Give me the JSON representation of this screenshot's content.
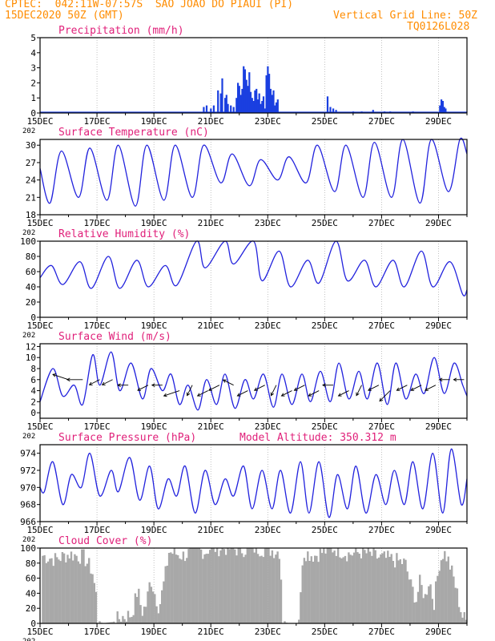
{
  "header": {
    "line1": "CPTEC:  042:11W-07:57S  SAO JOAO DO PIAUI (PI)",
    "line2": "15DEC2020 50Z (GMT)",
    "grid_note": "Vertical Grid Line: 50Z",
    "code": "TQ0126L028",
    "model_altitude_label": "Model Altitude: 350.312 m"
  },
  "colors": {
    "header": "#ff8c00",
    "title": "#e0207a",
    "line": "#2222dd",
    "bar": "#1a3fe0",
    "cloud": "#a8a8a8",
    "arrow": "#000000",
    "grid": "#999999"
  },
  "x_axis": {
    "ticks": [
      "15DEC",
      "17DEC",
      "19DEC",
      "21DEC",
      "23DEC",
      "25DEC",
      "27DEC",
      "29DEC"
    ],
    "tick_days": [
      0,
      2,
      4,
      6,
      8,
      10,
      12,
      14
    ],
    "minor_label": "202",
    "range_days": [
      0,
      15
    ]
  },
  "chart_data": [
    {
      "type": "bar",
      "title": "Precipitation (mm/h)",
      "ylim": [
        0,
        5
      ],
      "yticks": [
        "0",
        "1",
        "2",
        "3",
        "4",
        "5"
      ],
      "series": [
        {
          "x": [
            5.75,
            5.85,
            6.0,
            6.1,
            6.25,
            6.35,
            6.4,
            6.5,
            6.55,
            6.6,
            6.7,
            6.8,
            6.9,
            6.95,
            7.0,
            7.05,
            7.1,
            7.15,
            7.2,
            7.25,
            7.3,
            7.35,
            7.4,
            7.45,
            7.5,
            7.55,
            7.6,
            7.65,
            7.7,
            7.75,
            7.8,
            7.85,
            7.9,
            7.95,
            8.0,
            8.05,
            8.1,
            8.15,
            8.2,
            8.25,
            8.3,
            8.35,
            10.1,
            10.2,
            10.3,
            10.4,
            11.0,
            11.3,
            11.7,
            12.1,
            12.3,
            13.1,
            14.05,
            14.1,
            14.15,
            14.2,
            14.25
          ],
          "y": [
            0.4,
            0.5,
            0.3,
            0.5,
            1.5,
            1.3,
            2.3,
            1.0,
            1.2,
            0.6,
            0.5,
            0.4,
            1.0,
            2.0,
            1.8,
            1.2,
            1.6,
            3.1,
            2.9,
            2.2,
            1.8,
            2.7,
            1.4,
            1.0,
            0.8,
            1.5,
            1.6,
            0.9,
            1.3,
            0.6,
            0.8,
            1.1,
            0.3,
            2.5,
            3.1,
            2.6,
            1.6,
            1.2,
            1.5,
            0.5,
            0.7,
            0.9,
            1.1,
            0.4,
            0.3,
            0.2,
            0.1,
            0.1,
            0.2,
            0.1,
            0.1,
            0.1,
            0.5,
            0.9,
            0.8,
            0.4,
            0.3
          ]
        }
      ]
    },
    {
      "type": "line",
      "title": "Surface Temperature (nC)",
      "ylim": [
        18,
        31
      ],
      "yticks": [
        "18",
        "21",
        "24",
        "27",
        "30"
      ],
      "ytick_values": [
        18,
        21,
        24,
        27,
        30
      ],
      "min_max": [
        [
          0.0,
          26
        ],
        [
          0.35,
          20
        ],
        [
          0.75,
          29
        ],
        [
          1.35,
          21
        ],
        [
          1.75,
          29.5
        ],
        [
          2.35,
          20.5
        ],
        [
          2.75,
          30
        ],
        [
          3.35,
          19.5
        ],
        [
          3.75,
          30
        ],
        [
          4.35,
          20.5
        ],
        [
          4.75,
          30
        ],
        [
          5.35,
          21
        ],
        [
          5.75,
          30
        ],
        [
          6.35,
          23.5
        ],
        [
          6.75,
          28.5
        ],
        [
          7.35,
          23
        ],
        [
          7.75,
          27.5
        ],
        [
          8.35,
          24
        ],
        [
          8.75,
          28
        ],
        [
          9.35,
          23.5
        ],
        [
          9.75,
          30
        ],
        [
          10.35,
          22
        ],
        [
          10.75,
          30
        ],
        [
          11.35,
          21
        ],
        [
          11.75,
          30.5
        ],
        [
          12.35,
          21
        ],
        [
          12.75,
          31
        ],
        [
          13.35,
          20
        ],
        [
          13.75,
          31
        ],
        [
          14.35,
          22
        ],
        [
          14.75,
          31
        ],
        [
          15.0,
          28.5
        ]
      ]
    },
    {
      "type": "line",
      "title": "Relative Humidity (%)",
      "ylim": [
        0,
        100
      ],
      "yticks": [
        "0",
        "20",
        "40",
        "60",
        "80",
        "100"
      ],
      "ytick_values": [
        0,
        20,
        40,
        60,
        80,
        100
      ],
      "min_max": [
        [
          0.0,
          52
        ],
        [
          0.4,
          68
        ],
        [
          0.8,
          43
        ],
        [
          1.4,
          73
        ],
        [
          1.8,
          38
        ],
        [
          2.4,
          80
        ],
        [
          2.8,
          38
        ],
        [
          3.4,
          75
        ],
        [
          3.8,
          40
        ],
        [
          4.4,
          68
        ],
        [
          4.8,
          42
        ],
        [
          5.5,
          100
        ],
        [
          5.8,
          65
        ],
        [
          6.5,
          100
        ],
        [
          6.8,
          70
        ],
        [
          7.5,
          100
        ],
        [
          7.8,
          48
        ],
        [
          8.4,
          87
        ],
        [
          8.8,
          40
        ],
        [
          9.4,
          75
        ],
        [
          9.8,
          45
        ],
        [
          10.4,
          100
        ],
        [
          10.8,
          48
        ],
        [
          11.4,
          75
        ],
        [
          11.8,
          40
        ],
        [
          12.4,
          75
        ],
        [
          12.8,
          40
        ],
        [
          13.4,
          87
        ],
        [
          13.8,
          40
        ],
        [
          14.4,
          73
        ],
        [
          14.85,
          30
        ],
        [
          15.0,
          36
        ]
      ]
    },
    {
      "type": "line",
      "title": "Surface Wind (m/s)",
      "ylim": [
        -1,
        12.5
      ],
      "yticks": [
        "0",
        "2",
        "4",
        "6",
        "8",
        "10",
        "12"
      ],
      "ytick_values": [
        0,
        2,
        4,
        6,
        8,
        10,
        12
      ],
      "min_max": [
        [
          0.0,
          2
        ],
        [
          0.45,
          8
        ],
        [
          0.8,
          3
        ],
        [
          1.2,
          5
        ],
        [
          1.5,
          1.5
        ],
        [
          1.85,
          10.5
        ],
        [
          2.1,
          5
        ],
        [
          2.5,
          11
        ],
        [
          2.8,
          4
        ],
        [
          3.2,
          9
        ],
        [
          3.6,
          2.5
        ],
        [
          3.9,
          8
        ],
        [
          4.3,
          4
        ],
        [
          4.6,
          7
        ],
        [
          4.9,
          1.5
        ],
        [
          5.2,
          5
        ],
        [
          5.55,
          0.5
        ],
        [
          5.85,
          6
        ],
        [
          6.2,
          1.5
        ],
        [
          6.5,
          7
        ],
        [
          6.85,
          0.8
        ],
        [
          7.2,
          6
        ],
        [
          7.5,
          2.5
        ],
        [
          7.85,
          7
        ],
        [
          8.2,
          1
        ],
        [
          8.5,
          7
        ],
        [
          8.85,
          1.5
        ],
        [
          9.2,
          7
        ],
        [
          9.5,
          2
        ],
        [
          9.85,
          7.5
        ],
        [
          10.2,
          2
        ],
        [
          10.5,
          9
        ],
        [
          10.85,
          2.5
        ],
        [
          11.2,
          7.5
        ],
        [
          11.5,
          2.5
        ],
        [
          11.85,
          9
        ],
        [
          12.2,
          1.5
        ],
        [
          12.5,
          9
        ],
        [
          12.85,
          2.5
        ],
        [
          13.2,
          7
        ],
        [
          13.5,
          3.5
        ],
        [
          13.85,
          10
        ],
        [
          14.2,
          3.5
        ],
        [
          14.55,
          9
        ],
        [
          14.85,
          5
        ],
        [
          15.0,
          3
        ]
      ],
      "vectors": {
        "x": [
          1.0,
          1.5,
          2.1,
          2.55,
          3.1,
          3.8,
          4.3,
          4.9,
          5.35,
          5.9,
          6.3,
          6.8,
          7.3,
          7.9,
          8.3,
          8.85,
          9.3,
          9.8,
          10.3,
          10.85,
          11.3,
          11.9,
          12.3,
          12.9,
          13.4,
          13.9,
          14.4,
          14.9
        ],
        "y": [
          6,
          6,
          6,
          6,
          5,
          5,
          5,
          4,
          5,
          4,
          5,
          5,
          4,
          5,
          5,
          4,
          5,
          4,
          5,
          4,
          5,
          5,
          4,
          5,
          5,
          5,
          6,
          6
        ],
        "u": [
          -3,
          -3,
          -2,
          -2,
          -2,
          -2,
          -2,
          -3,
          -1,
          -2,
          -2,
          -2,
          -2,
          -2,
          -1,
          -2,
          -2,
          -2,
          -2,
          -2,
          -1,
          -2,
          -2,
          -2,
          -2,
          -2,
          -2,
          -2
        ],
        "v": [
          1,
          0,
          -1,
          -1,
          0,
          -1,
          0,
          -1,
          -2,
          -1,
          -1,
          1,
          -1,
          -1,
          -2,
          -1,
          -1,
          -1,
          0,
          -1,
          -2,
          -1,
          -2,
          -1,
          -1,
          -1,
          0,
          0
        ]
      }
    },
    {
      "type": "line",
      "title": "Surface Pressure (hPa)",
      "ylim": [
        966,
        975
      ],
      "yticks": [
        "966",
        "968",
        "970",
        "972",
        "974"
      ],
      "ytick_values": [
        966,
        968,
        970,
        972,
        974
      ],
      "min_max": [
        [
          0.0,
          970
        ],
        [
          0.15,
          969.5
        ],
        [
          0.45,
          973
        ],
        [
          0.8,
          968
        ],
        [
          1.1,
          971.5
        ],
        [
          1.45,
          970
        ],
        [
          1.75,
          974
        ],
        [
          2.1,
          969
        ],
        [
          2.5,
          972
        ],
        [
          2.75,
          969.5
        ],
        [
          3.15,
          973.5
        ],
        [
          3.5,
          968.5
        ],
        [
          3.85,
          972.5
        ],
        [
          4.15,
          967.5
        ],
        [
          4.5,
          971
        ],
        [
          4.8,
          969
        ],
        [
          5.1,
          972.5
        ],
        [
          5.45,
          967
        ],
        [
          5.8,
          972
        ],
        [
          6.15,
          968
        ],
        [
          6.5,
          971
        ],
        [
          6.8,
          969
        ],
        [
          7.15,
          972.5
        ],
        [
          7.45,
          967.5
        ],
        [
          7.8,
          972
        ],
        [
          8.15,
          967.5
        ],
        [
          8.45,
          972
        ],
        [
          8.8,
          967
        ],
        [
          9.15,
          973
        ],
        [
          9.45,
          967
        ],
        [
          9.8,
          973
        ],
        [
          10.15,
          966.5
        ],
        [
          10.45,
          971.5
        ],
        [
          10.8,
          967.5
        ],
        [
          11.1,
          972.5
        ],
        [
          11.45,
          967
        ],
        [
          11.8,
          971.5
        ],
        [
          12.15,
          968
        ],
        [
          12.45,
          972
        ],
        [
          12.8,
          968
        ],
        [
          13.1,
          973
        ],
        [
          13.45,
          967.5
        ],
        [
          13.8,
          974
        ],
        [
          14.15,
          967
        ],
        [
          14.45,
          974.5
        ],
        [
          14.8,
          968
        ],
        [
          15.0,
          971
        ]
      ]
    },
    {
      "type": "area",
      "title": "Cloud Cover (%)",
      "ylim": [
        0,
        100
      ],
      "yticks": [
        "0",
        "20",
        "40",
        "60",
        "80",
        "100"
      ],
      "ytick_values": [
        0,
        20,
        40,
        60,
        80,
        100
      ],
      "segments": [
        [
          0.0,
          0
        ],
        [
          0.05,
          90
        ],
        [
          0.5,
          85
        ],
        [
          1.0,
          92
        ],
        [
          1.5,
          88
        ],
        [
          1.8,
          70
        ],
        [
          1.95,
          35
        ],
        [
          2.0,
          5
        ],
        [
          2.15,
          0
        ],
        [
          2.55,
          2
        ],
        [
          2.8,
          8
        ],
        [
          3.2,
          12
        ],
        [
          3.4,
          45
        ],
        [
          3.55,
          15
        ],
        [
          3.7,
          25
        ],
        [
          3.85,
          60
        ],
        [
          4.0,
          40
        ],
        [
          4.15,
          20
        ],
        [
          4.35,
          60
        ],
        [
          4.5,
          95
        ],
        [
          5.0,
          90
        ],
        [
          5.5,
          98
        ],
        [
          5.8,
          95
        ],
        [
          5.9,
          100
        ],
        [
          6.5,
          100
        ],
        [
          7.0,
          98
        ],
        [
          7.5,
          100
        ],
        [
          8.0,
          98
        ],
        [
          8.4,
          95
        ],
        [
          8.5,
          5
        ],
        [
          8.65,
          0
        ],
        [
          9.0,
          0
        ],
        [
          9.1,
          15
        ],
        [
          9.2,
          95
        ],
        [
          9.6,
          90
        ],
        [
          9.9,
          95
        ],
        [
          10.3,
          100
        ],
        [
          10.8,
          92
        ],
        [
          11.3,
          95
        ],
        [
          11.8,
          88
        ],
        [
          12.3,
          85
        ],
        [
          12.8,
          80
        ],
        [
          13.0,
          50
        ],
        [
          13.2,
          30
        ],
        [
          13.3,
          55
        ],
        [
          13.5,
          35
        ],
        [
          13.65,
          60
        ],
        [
          13.8,
          25
        ],
        [
          14.0,
          80
        ],
        [
          14.15,
          95
        ],
        [
          14.3,
          85
        ],
        [
          14.5,
          60
        ],
        [
          14.65,
          35
        ],
        [
          14.8,
          10
        ],
        [
          15.0,
          0
        ]
      ]
    }
  ]
}
